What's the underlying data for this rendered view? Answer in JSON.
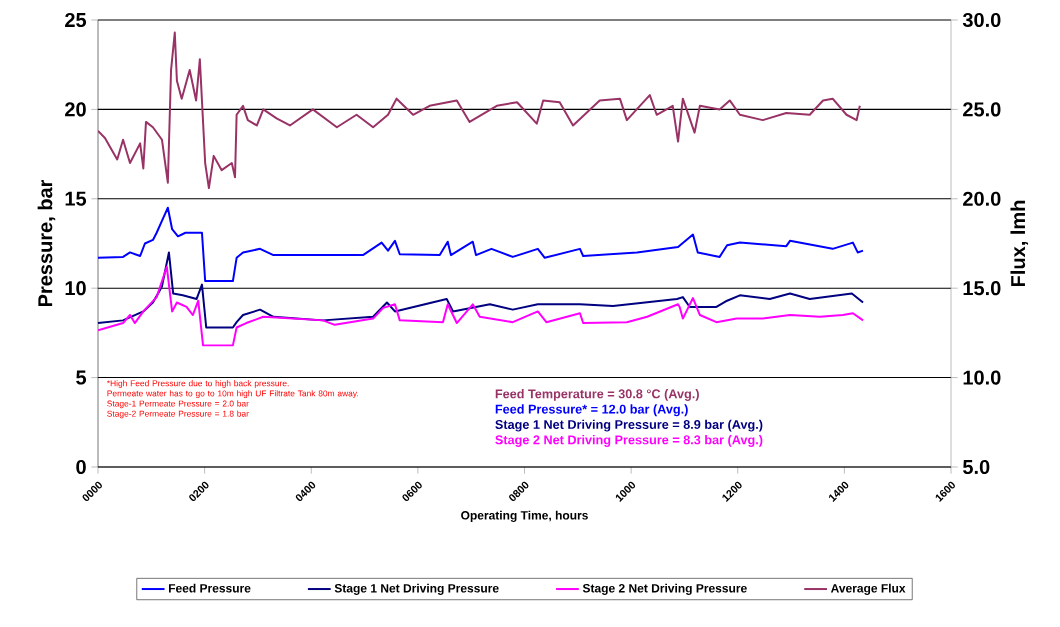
{
  "chart_data": {
    "type": "line",
    "xlabel": "Operating Time, hours",
    "ylabel": "Pressure, bar",
    "y2label": "Flux, lmh",
    "xlim": [
      0,
      1600
    ],
    "xticks": [
      {
        "value": 0,
        "label": "0000"
      },
      {
        "value": 200,
        "label": "0200"
      },
      {
        "value": 400,
        "label": "0400"
      },
      {
        "value": 600,
        "label": "0600"
      },
      {
        "value": 800,
        "label": "0800"
      },
      {
        "value": 1000,
        "label": "1000"
      },
      {
        "value": 1200,
        "label": "1200"
      },
      {
        "value": 1400,
        "label": "1400"
      },
      {
        "value": 1600,
        "label": "1600"
      }
    ],
    "ylim": [
      0,
      25
    ],
    "yticks": [
      0,
      5,
      10,
      15,
      20,
      25
    ],
    "y2lim": [
      5,
      30
    ],
    "y2ticks": [
      {
        "value": 5,
        "label": "5.0"
      },
      {
        "value": 10,
        "label": "10.0"
      },
      {
        "value": 15,
        "label": "15.0"
      },
      {
        "value": 20,
        "label": "20.0"
      },
      {
        "value": 25,
        "label": "25.0"
      },
      {
        "value": 30,
        "label": "30.0"
      }
    ],
    "grid": "y",
    "legend": "bottom",
    "marker": "none",
    "line_style": "solid",
    "series": [
      {
        "name": "Feed Pressure",
        "color": "#0000ff",
        "x": [
          0,
          47,
          60,
          79,
          88,
          103,
          110,
          122,
          131,
          139,
          150,
          164,
          195,
          201,
          253,
          260,
          272,
          304,
          329,
          422,
          497,
          532,
          544,
          557,
          566,
          641,
          656,
          662,
          703,
          709,
          738,
          778,
          825,
          838,
          904,
          910,
          1011,
          1088,
          1116,
          1125,
          1166,
          1180,
          1204,
          1291,
          1298,
          1378,
          1416,
          1425,
          1435
        ],
        "values": [
          11.7,
          11.75,
          12.0,
          11.8,
          12.5,
          12.7,
          13.1,
          13.9,
          14.5,
          13.3,
          12.9,
          13.1,
          13.1,
          10.4,
          10.4,
          11.7,
          12.0,
          12.2,
          11.85,
          11.85,
          11.85,
          12.55,
          12.1,
          12.65,
          11.9,
          11.85,
          12.6,
          11.85,
          12.6,
          11.85,
          12.2,
          11.75,
          12.2,
          11.7,
          12.2,
          11.8,
          12.0,
          12.3,
          13.0,
          12.0,
          11.75,
          12.4,
          12.55,
          12.35,
          12.65,
          12.2,
          12.55,
          12.0,
          12.1
        ]
      },
      {
        "name": "Stage 1 Net Driving Pressure",
        "color": "#000080",
        "x": [
          0,
          47,
          85,
          103,
          120,
          133,
          141,
          159,
          185,
          195,
          203,
          253,
          260,
          272,
          304,
          329,
          422,
          516,
          542,
          557,
          654,
          666,
          735,
          778,
          825,
          904,
          966,
          1086,
          1097,
          1110,
          1160,
          1180,
          1204,
          1260,
          1298,
          1335,
          1414,
          1435
        ],
        "values": [
          8.05,
          8.2,
          8.7,
          9.2,
          10.1,
          12.0,
          9.7,
          9.6,
          9.4,
          10.2,
          7.8,
          7.8,
          8.1,
          8.5,
          8.8,
          8.4,
          8.2,
          8.4,
          9.2,
          8.7,
          9.4,
          8.7,
          9.1,
          8.8,
          9.1,
          9.1,
          9.0,
          9.4,
          9.5,
          8.95,
          8.95,
          9.3,
          9.6,
          9.4,
          9.7,
          9.4,
          9.7,
          9.2
        ]
      },
      {
        "name": "Stage 2 Net Driving Pressure",
        "color": "#ff00ff",
        "x": [
          0,
          47,
          60,
          69,
          85,
          110,
          129,
          139,
          148,
          166,
          178,
          188,
          197,
          253,
          260,
          278,
          310,
          422,
          444,
          516,
          535,
          557,
          566,
          647,
          656,
          673,
          703,
          716,
          778,
          825,
          841,
          904,
          910,
          992,
          1030,
          1088,
          1091,
          1097,
          1116,
          1129,
          1160,
          1198,
          1247,
          1298,
          1354,
          1397,
          1416,
          1435
        ],
        "values": [
          7.65,
          8.05,
          8.5,
          8.05,
          8.7,
          9.5,
          11.2,
          8.7,
          9.2,
          8.95,
          8.5,
          9.3,
          6.8,
          6.8,
          7.8,
          8.05,
          8.4,
          8.2,
          7.95,
          8.3,
          8.9,
          9.1,
          8.2,
          8.1,
          9.1,
          8.05,
          9.1,
          8.4,
          8.1,
          8.7,
          8.1,
          8.6,
          8.05,
          8.1,
          8.4,
          9.1,
          8.95,
          8.3,
          9.45,
          8.5,
          8.1,
          8.3,
          8.3,
          8.5,
          8.4,
          8.5,
          8.6,
          8.2
        ]
      },
      {
        "name": "Average Flux",
        "color": "#993366",
        "axis": "y2",
        "x": [
          0,
          13,
          36,
          47,
          60,
          79,
          85,
          90,
          103,
          120,
          131,
          137,
          144,
          148,
          157,
          172,
          184,
          191,
          201,
          208,
          217,
          232,
          251,
          257,
          260,
          272,
          281,
          298,
          310,
          335,
          360,
          403,
          448,
          485,
          516,
          544,
          560,
          591,
          622,
          673,
          697,
          748,
          786,
          823,
          835,
          866,
          891,
          941,
          979,
          992,
          1035,
          1048,
          1078,
          1088,
          1097,
          1119,
          1129,
          1166,
          1185,
          1204,
          1247,
          1291,
          1335,
          1360,
          1378,
          1404,
          1423,
          1429
        ],
        "values": [
          23.8,
          23.4,
          22.2,
          23.3,
          22.0,
          23.1,
          21.7,
          24.3,
          24.0,
          23.3,
          20.9,
          27.2,
          29.3,
          26.6,
          25.6,
          27.2,
          25.5,
          27.8,
          22.0,
          20.6,
          22.4,
          21.6,
          22.0,
          21.2,
          24.7,
          25.2,
          24.4,
          24.1,
          25.0,
          24.5,
          24.1,
          25.0,
          24.0,
          24.7,
          24.0,
          24.7,
          25.6,
          24.7,
          25.2,
          25.5,
          24.3,
          25.2,
          25.4,
          24.2,
          25.5,
          25.4,
          24.1,
          25.5,
          25.6,
          24.4,
          25.8,
          24.7,
          25.2,
          23.2,
          25.6,
          23.7,
          25.2,
          25.0,
          25.5,
          24.7,
          24.4,
          24.8,
          24.7,
          25.5,
          25.6,
          24.7,
          24.4,
          25.2
        ]
      }
    ],
    "annotations": [
      "*High Feed Pressure due to high back pressure.",
      "Permeate water has to go to 10m high UF Filtrate Tank 80m away.",
      "Stage-1 Permeate Pressure = 2.0 bar",
      "Stage-2 Permeate Pressure = 1.8 bar",
      "Feed Temperature = 30.8 °C (Avg.)",
      "Feed Pressure* = 12.0 bar (Avg.)",
      "Stage 1 Net Driving Pressure = 8.9 bar (Avg.)",
      "Stage 2 Net Driving Pressure = 8.3 bar (Avg.)"
    ]
  }
}
